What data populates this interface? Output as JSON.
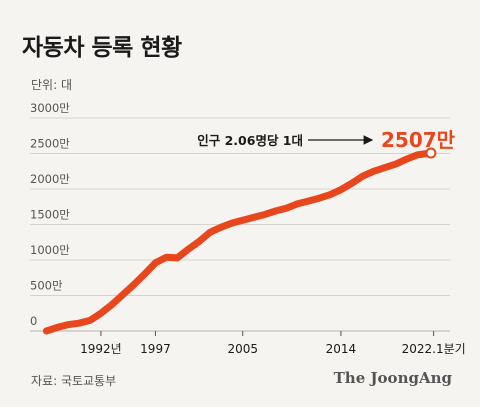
{
  "title": "자동차 등록 현황",
  "unit_label": "단위: 대",
  "source": "자료: 국토교통부",
  "brand": "The JoongAng",
  "annotation": {
    "text": "인구 2.06명당 1대",
    "value_text": "2507만",
    "value_color": "#e8471d"
  },
  "colors": {
    "line": "#e8471d",
    "grid": "#d6d3cd",
    "axis_text": "#555555"
  },
  "chart_data": {
    "type": "line",
    "title": "자동차 등록 현황",
    "ylabel": "단위: 대",
    "xlabel": "",
    "ylim": [
      0,
      3000
    ],
    "yticks": [
      0,
      500,
      1000,
      1500,
      2000,
      2500,
      3000
    ],
    "ytick_labels": [
      "0",
      "500만",
      "1000만",
      "1500만",
      "2000만",
      "2500만",
      "3000만"
    ],
    "xlim": [
      1985.5,
      2024
    ],
    "xticks": [
      1992,
      1997,
      2005,
      2014,
      2022.5
    ],
    "xtick_labels": [
      "1992년",
      "1997",
      "2005",
      "2014",
      "2022.1분기"
    ],
    "grid": true,
    "series": [
      {
        "x": [
          1987,
          1988,
          1989,
          1990,
          1991,
          1992,
          1993,
          1994,
          1995,
          1996,
          1997,
          1998,
          1999,
          2000,
          2001,
          2002,
          2003,
          2004,
          2005,
          2006,
          2007,
          2008,
          2009,
          2010,
          2011,
          2012,
          2013,
          2014,
          2015,
          2016,
          2017,
          2018,
          2019,
          2020,
          2021,
          2022.25
        ],
        "values": [
          0,
          50,
          90,
          110,
          150,
          250,
          370,
          510,
          650,
          800,
          960,
          1040,
          1030,
          1150,
          1260,
          1390,
          1460,
          1520,
          1560,
          1600,
          1640,
          1690,
          1730,
          1790,
          1830,
          1870,
          1920,
          1990,
          2080,
          2180,
          2250,
          2300,
          2350,
          2420,
          2480,
          2507
        ]
      }
    ]
  }
}
